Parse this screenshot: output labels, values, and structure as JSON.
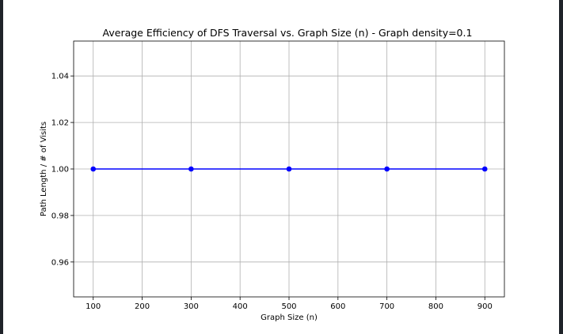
{
  "chart_data": {
    "type": "line",
    "title": "Average Efficiency of DFS Traversal vs. Graph Size (n) - Graph density=0.1",
    "xlabel": "Graph Size (n)",
    "ylabel": "Path Length / # of Visits",
    "x": [
      100,
      300,
      500,
      700,
      900
    ],
    "series": [
      {
        "values": [
          1.0,
          1.0,
          1.0,
          1.0,
          1.0
        ],
        "color": "#0000ff",
        "marker": "circle"
      }
    ],
    "xticks": [
      "100",
      "200",
      "300",
      "400",
      "500",
      "600",
      "700",
      "800",
      "900"
    ],
    "yticks": [
      "0.96",
      "0.98",
      "1.00",
      "1.02",
      "1.04"
    ],
    "xlim": [
      60,
      940
    ],
    "ylim": [
      0.945,
      1.055
    ],
    "grid": true
  }
}
